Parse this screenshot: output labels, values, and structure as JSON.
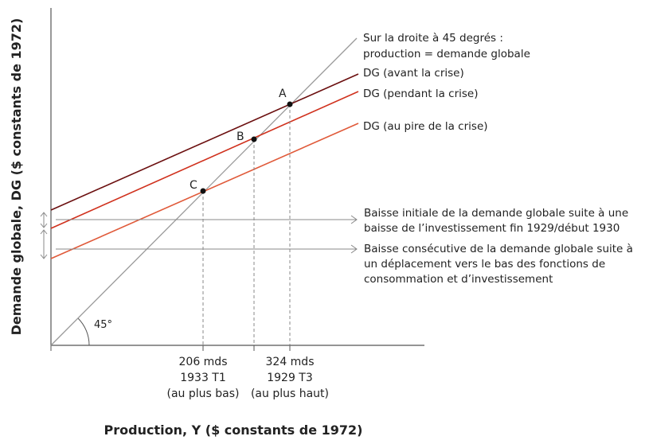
{
  "chart_data": {
    "type": "line",
    "xlabel": "Production, Y ($ constants de 1972)",
    "ylabel": "Demande globale, DG ($ constants de 1972)",
    "angle_label": "45°",
    "series": [
      {
        "name": "Sur la droite à 45 degrés :",
        "name_line2": "production = demande globale",
        "color": "#9a9a9a"
      },
      {
        "name": "DG (avant la crise)",
        "color": "#6b0f0f"
      },
      {
        "name": "DG (pendant la crise)",
        "color": "#d0311d"
      },
      {
        "name": "DG (au pire de la crise)",
        "color": "#e05a3a"
      }
    ],
    "points": [
      {
        "label": "A"
      },
      {
        "label": "B"
      },
      {
        "label": "C"
      }
    ],
    "x_ticks": [
      {
        "line1": "206 mds",
        "line2": "1933 T1",
        "line3": "(au plus bas)"
      },
      {
        "line1": "324 mds",
        "line2": "1929 T3",
        "line3": "(au plus haut)"
      }
    ],
    "annotations": [
      {
        "lines": [
          "Baisse initiale de la demande globale suite à une",
          "baisse de l’investissement fin 1929/début 1930"
        ]
      },
      {
        "lines": [
          "Baisse consécutive de la demande globale suite à",
          "un déplacement vers le bas des fonctions de",
          "consommation et d’investissement"
        ]
      }
    ]
  },
  "colors": {
    "axis": "#555555",
    "diagonal": "#9a9a9a",
    "guide": "#888888",
    "point": "#111111"
  }
}
